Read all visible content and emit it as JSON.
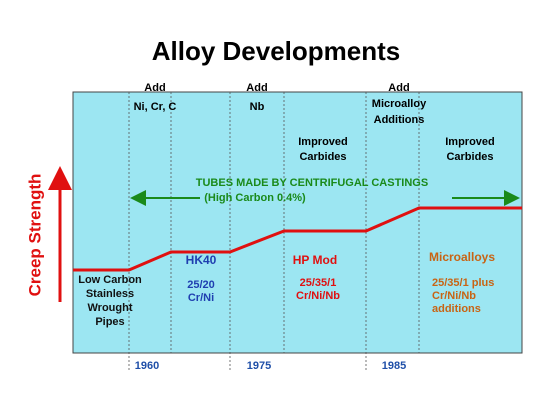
{
  "title": "Alloy Developments",
  "axis_label": "Creep Strength",
  "years": [
    "1960",
    "1975",
    "1985"
  ],
  "additions": [
    {
      "lines": [
        "Add",
        "Ni, Cr, C"
      ]
    },
    {
      "lines": [
        "Add",
        "Nb"
      ]
    },
    {
      "lines": [
        "Add",
        "Microalloy",
        "Additions"
      ]
    }
  ],
  "improvements": [
    {
      "lines": [
        "Improved",
        "Carbides"
      ]
    },
    {
      "lines": [
        "Improved",
        "Carbides"
      ]
    }
  ],
  "casting_note": {
    "lines": [
      "TUBES MADE BY CENTRIFUGAL CASTINGS",
      "(High Carbon 0.4%)"
    ]
  },
  "stages": [
    {
      "name": "Low Carbon Stainless Wrought Pipes",
      "lines": [
        "Low Carbon",
        "Stainless",
        "Wrought",
        "Pipes"
      ]
    },
    {
      "name": "HK40",
      "lines": [
        "25/20",
        "Cr/Ni"
      ]
    },
    {
      "name": "HP Mod",
      "lines": [
        "25/35/1",
        "Cr/Ni/Nb"
      ]
    },
    {
      "name": "Microalloys",
      "lines": [
        "25/35/1 plus",
        "Cr/Ni/Nb",
        "additions"
      ]
    }
  ]
}
